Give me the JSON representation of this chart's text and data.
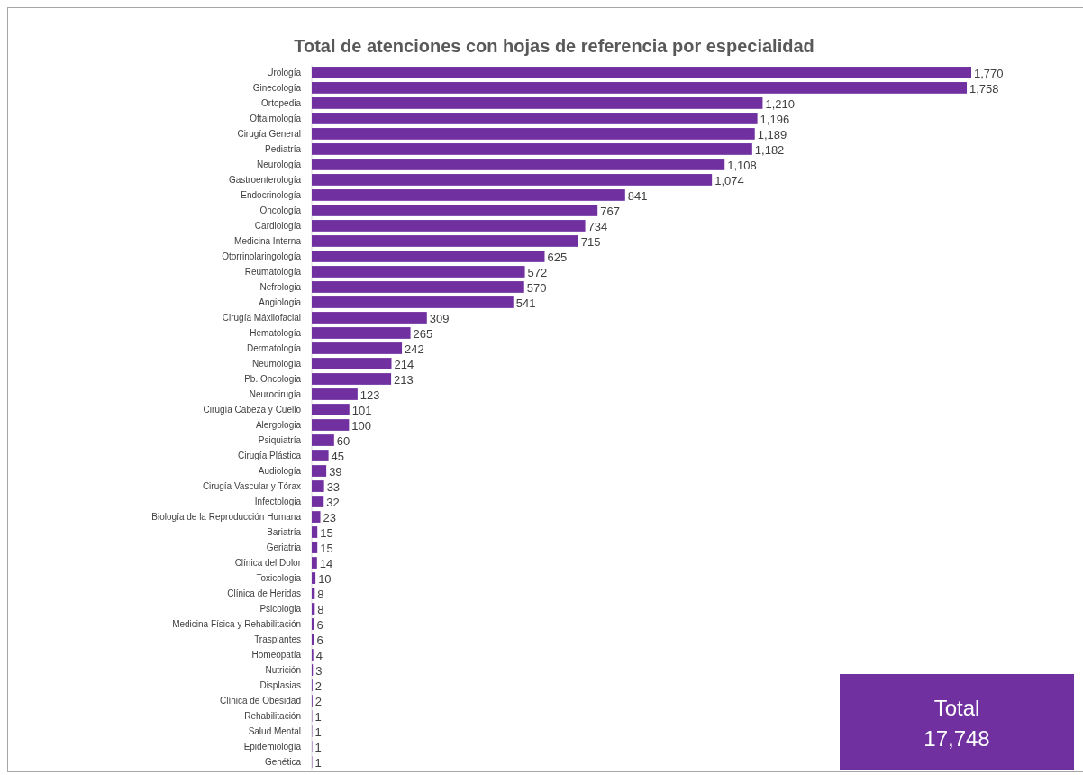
{
  "chart_data": {
    "type": "bar",
    "orientation": "horizontal",
    "title": "Total de atenciones con hojas de referencia por especialidad",
    "categories": [
      "Urología",
      "Ginecología",
      "Ortopedia",
      "Oftalmología",
      "Cirugía General",
      "Pediatría",
      "Neurología",
      "Gastroenterología",
      "Endocrinología",
      "Oncología",
      "Cardiología",
      "Medicina  Interna",
      "Otorrinolaringología",
      "Reumatología",
      "Nefrologia",
      "Angiologia",
      "Cirugía  Máxilofacial",
      "Hematología",
      "Dermatología",
      "Neumología",
      "Pb. Oncologia",
      "Neurocirugía",
      "Cirugía Cabeza y Cuello",
      "Alergologia",
      "Psiquiatría",
      "Cirugía Plástica",
      "Audiología",
      "Cirugía Vascular y Tórax",
      "Infectologia",
      "Biología de la Reproducción Humana",
      "Bariatría",
      "Geriatria",
      "Clínica del Dolor",
      "Toxicologia",
      "Clínica de Heridas",
      "Psicologia",
      "Medicina Física y Rehabilitación",
      "Trasplantes",
      "Homeopatía",
      "Nutrición",
      "Displasias",
      "Clínica de Obesidad",
      "Rehabilitación",
      "Salud Mental",
      "Epidemiología",
      "Genética"
    ],
    "values": [
      1770,
      1758,
      1210,
      1196,
      1189,
      1182,
      1108,
      1074,
      841,
      767,
      734,
      715,
      625,
      572,
      570,
      541,
      309,
      265,
      242,
      214,
      213,
      123,
      101,
      100,
      60,
      45,
      39,
      33,
      32,
      23,
      15,
      15,
      14,
      10,
      8,
      8,
      6,
      6,
      4,
      3,
      2,
      2,
      1,
      1,
      1,
      1
    ],
    "value_labels": [
      "1,770",
      "1,758",
      "1,210",
      "1,196",
      "1,189",
      "1,182",
      "1,108",
      "1,074",
      "841",
      "767",
      "734",
      "715",
      "625",
      "572",
      "570",
      "541",
      "309",
      "265",
      "242",
      "214",
      "213",
      "123",
      "101",
      "100",
      "60",
      "45",
      "39",
      "33",
      "32",
      "23",
      "15",
      "15",
      "14",
      "10",
      "8",
      "8",
      "6",
      "6",
      "4",
      "3",
      "2",
      "2",
      "1",
      "1",
      "1",
      "1"
    ],
    "color": "#7030a0",
    "annotations": [
      "Total",
      "17,748"
    ]
  }
}
